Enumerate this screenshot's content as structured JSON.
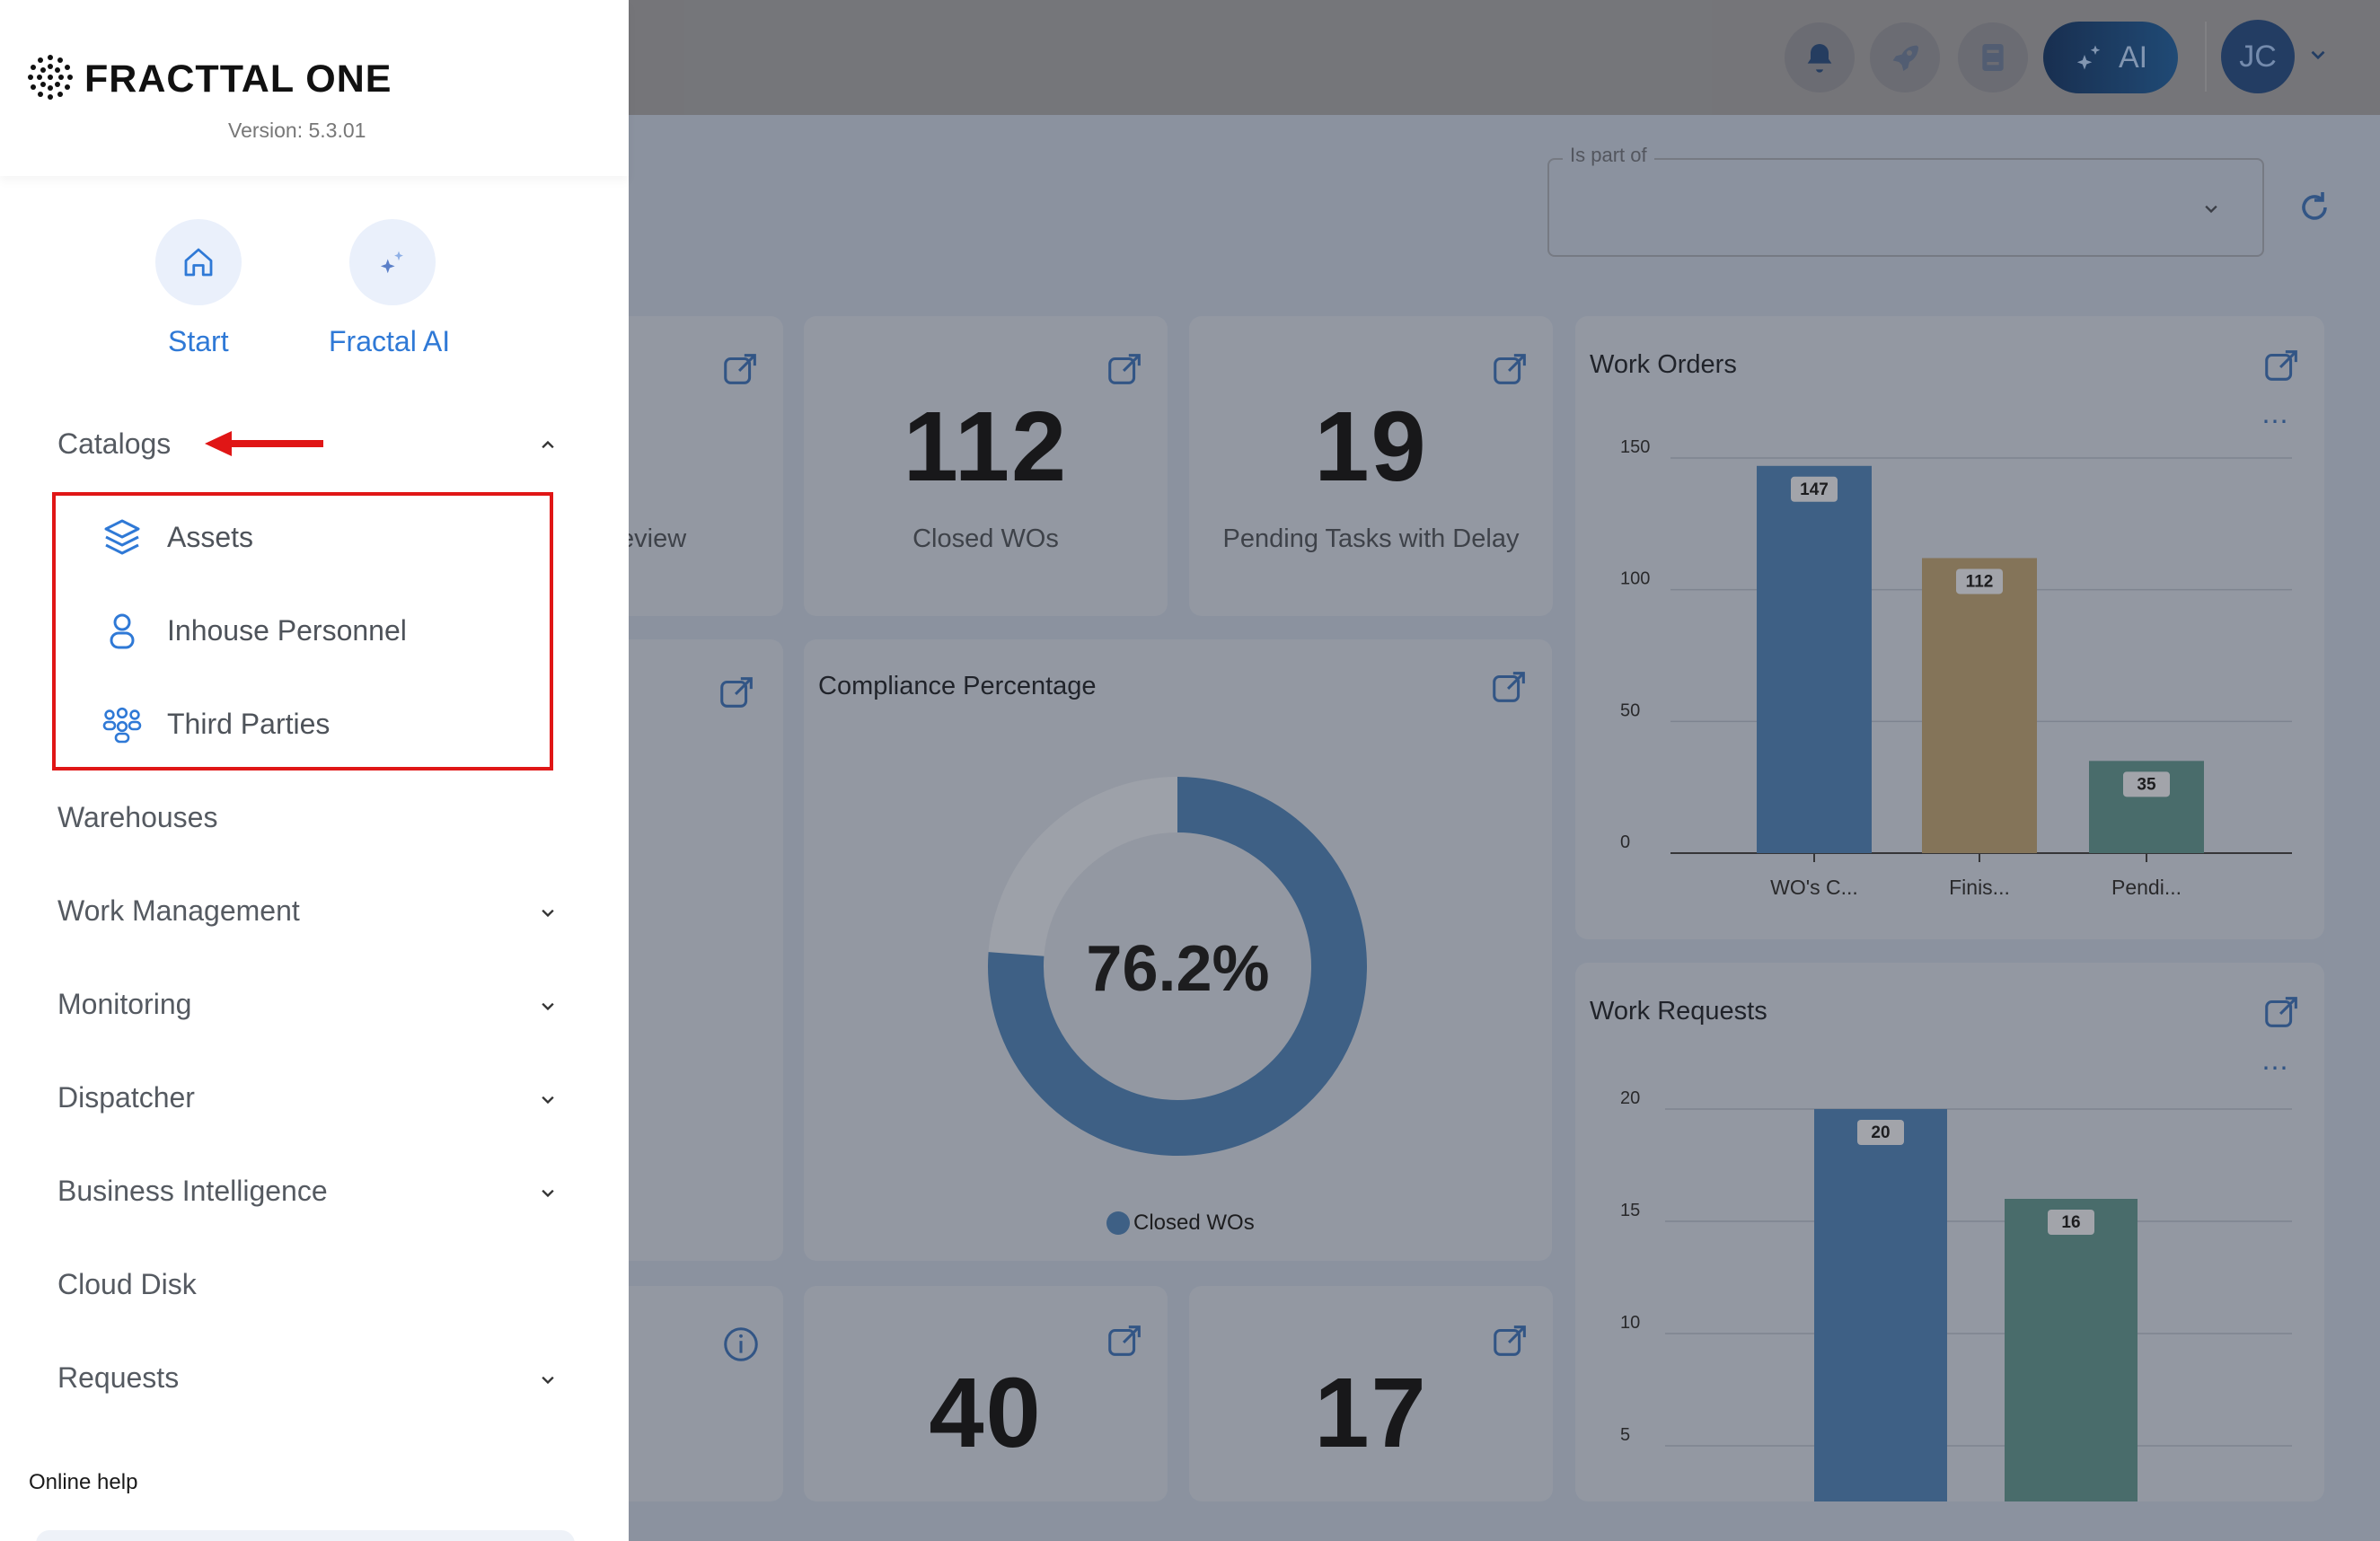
{
  "app": {
    "brand": "FRACTTAL ONE",
    "version": "Version: 5.3.01"
  },
  "quick_access": [
    {
      "label": "Start",
      "icon": "home-icon"
    },
    {
      "label": "Fractal AI",
      "icon": "sparkle-icon"
    }
  ],
  "menu": {
    "catalogs": "Catalogs",
    "catalog_items": [
      "Assets",
      "Inhouse Personnel",
      "Third Parties"
    ],
    "warehouses": "Warehouses",
    "work_management": "Work Management",
    "monitoring": "Monitoring",
    "dispatcher": "Dispatcher",
    "business_intelligence": "Business Intelligence",
    "cloud_disk": "Cloud Disk",
    "requests": "Requests"
  },
  "online_help": "Online help",
  "topbar": {
    "ai_label": "AI",
    "avatar_initials": "JC"
  },
  "filter": {
    "label": "Is part of",
    "value": ""
  },
  "cards": {
    "partial_label": "eview",
    "closed_wos_value": "112",
    "closed_wos_label": "Closed WOs",
    "pending_delay_value": "19",
    "pending_delay_label": "Pending Tasks with Delay",
    "bottom_mid_value": "40",
    "bottom_right_value": "17"
  },
  "compliance": {
    "title": "Compliance Percentage",
    "value_label": "76.2%",
    "legend": "Closed WOs",
    "fraction": 0.762
  },
  "colors": {
    "accent": "#2f79d6",
    "blue_bar": "#3f6e9e",
    "orange_bar": "#a08a61",
    "teal_bar": "#4e7e7a",
    "highlight_red": "#e01616"
  },
  "chart_data": [
    {
      "type": "bar",
      "title": "Work Orders",
      "categories": [
        "WO's C...",
        "Finis...",
        "Pendi..."
      ],
      "values": [
        147,
        112,
        35
      ],
      "ylim": [
        0,
        150
      ],
      "yticks": [
        0,
        50,
        100,
        150
      ]
    },
    {
      "type": "bar",
      "title": "Work Requests",
      "categories": [
        "",
        ""
      ],
      "values": [
        20,
        16
      ],
      "ylim": [
        0,
        20
      ],
      "yticks": [
        5,
        10,
        15,
        20
      ]
    }
  ]
}
